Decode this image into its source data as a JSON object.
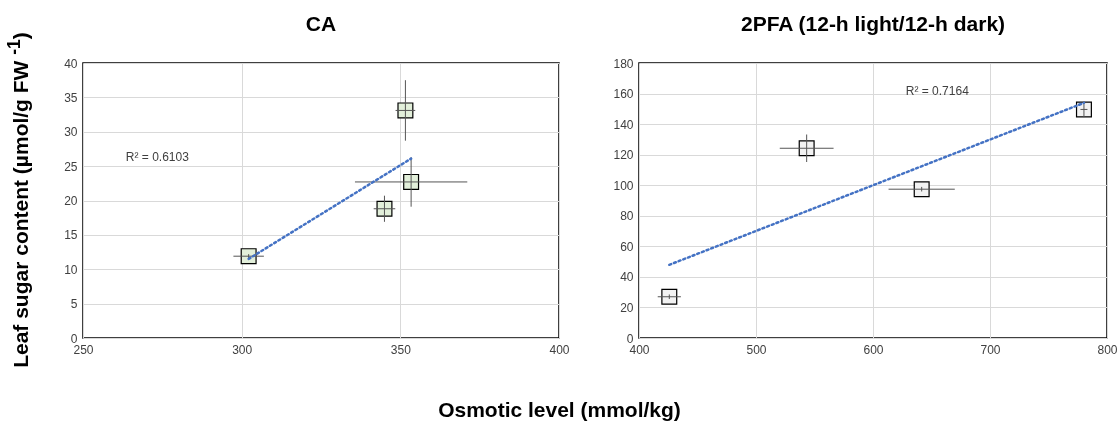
{
  "chart_data": [
    {
      "type": "scatter",
      "title": "CA",
      "xlabel": "Osmotic level (mmol/kg)",
      "ylabel": "Leaf sugar content (µmol/g FW $^{-1}$)",
      "xlim": [
        250,
        400
      ],
      "xticks": [
        250,
        300,
        350,
        400
      ],
      "ylim": [
        0,
        40
      ],
      "yticks": [
        0,
        5,
        10,
        15,
        20,
        25,
        30,
        35,
        40
      ],
      "grid": true,
      "marker": "square",
      "series": [
        {
          "color": "#e2efda",
          "x": [
            302.2,
            351.6,
            353.4,
            345.0
          ],
          "values": [
            11.9,
            33.1,
            22.7,
            18.8
          ],
          "errors": [
            0.3,
            4.4,
            3.6,
            1.9
          ],
          "xerrors": [
            4.8,
            3.1,
            17.7,
            3.4
          ]
        },
        {
          "type": "line",
          "color": "#4472c4",
          "line_style": "dotted",
          "marker": "none",
          "x": [
            302.2,
            353.4
          ],
          "values": [
            11.5,
            26.1
          ]
        }
      ],
      "annotations": [
        "R² = 0.6103"
      ]
    },
    {
      "type": "scatter",
      "title": "2PFA (12-h light/12-h dark)",
      "xlim": [
        400,
        800
      ],
      "xticks": [
        400,
        500,
        600,
        700,
        800
      ],
      "ylim": [
        0,
        180
      ],
      "yticks": [
        0,
        20,
        40,
        60,
        80,
        100,
        120,
        140,
        160,
        180
      ],
      "grid": true,
      "marker": "square",
      "series": [
        {
          "color": "#f2f2f2",
          "x": [
            425.9,
            543.3,
            641.6,
            780.3
          ],
          "values": [
            27.0,
            124.2,
            97.4,
            149.6
          ],
          "errors": [
            1.5,
            9,
            1.5,
            5
          ],
          "xerrors": [
            9.9,
            23,
            28.3,
            3
          ]
        },
        {
          "type": "line",
          "color": "#4472c4",
          "line_style": "dotted",
          "marker": "none",
          "x": [
            425.9,
            780.3
          ],
          "values": [
            47.9,
            153.9
          ]
        }
      ],
      "annotations": [
        "R² = 0.7164"
      ]
    }
  ]
}
